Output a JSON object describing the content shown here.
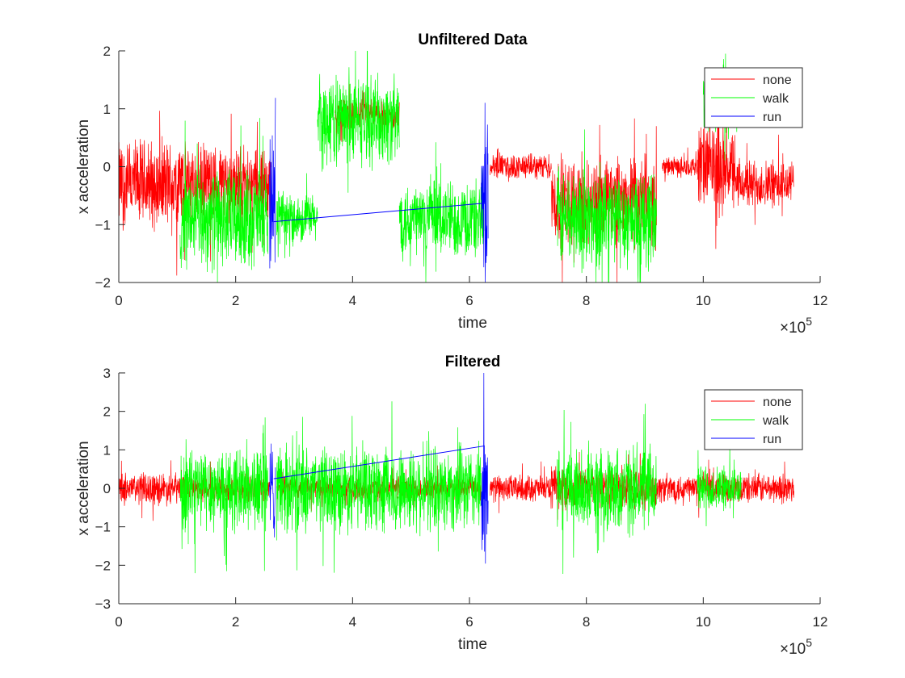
{
  "chart_data": [
    {
      "type": "line",
      "title": "Unfiltered Data",
      "xlabel": "time",
      "ylabel": "x acceleration",
      "x_exponent_label": "×10",
      "x_exponent": "5",
      "xlim": [
        0,
        12
      ],
      "ylim": [
        -2,
        2
      ],
      "xticks": [
        "0",
        "2",
        "4",
        "6",
        "8",
        "10",
        "12"
      ],
      "yticks": [
        "-2",
        "-1",
        "0",
        "1",
        "2"
      ],
      "legend_position": "top-right",
      "series": [
        {
          "name": "none",
          "color": "#ff0000",
          "segments": [
            {
              "x0": 0.0,
              "x1": 1.1,
              "center": -0.3,
              "amp": 0.9
            },
            {
              "x0": 1.1,
              "x1": 2.6,
              "center": -0.3,
              "amp": 0.8
            },
            {
              "x0": 3.7,
              "x1": 4.8,
              "center": 0.9,
              "amp": 0.3
            },
            {
              "x0": 6.35,
              "x1": 7.4,
              "center": 0.0,
              "amp": 0.25
            },
            {
              "x0": 7.4,
              "x1": 9.2,
              "center": -0.6,
              "amp": 0.9
            },
            {
              "x0": 9.3,
              "x1": 9.9,
              "center": 0.0,
              "amp": 0.2
            },
            {
              "x0": 9.9,
              "x1": 10.5,
              "center": 0.0,
              "amp": 0.9
            },
            {
              "x0": 10.5,
              "x1": 11.55,
              "center": -0.3,
              "amp": 0.5
            }
          ]
        },
        {
          "name": "walk",
          "color": "#00ff00",
          "segments": [
            {
              "x0": 1.05,
              "x1": 2.55,
              "center": -0.9,
              "amp": 1.0
            },
            {
              "x0": 2.7,
              "x1": 3.4,
              "center": -0.9,
              "amp": 0.5
            },
            {
              "x0": 3.4,
              "x1": 4.8,
              "center": 0.8,
              "amp": 0.9
            },
            {
              "x0": 4.8,
              "x1": 6.25,
              "center": -0.9,
              "amp": 0.8
            },
            {
              "x0": 7.5,
              "x1": 9.2,
              "center": -0.9,
              "amp": 1.0
            },
            {
              "x0": 10.0,
              "x1": 10.6,
              "center": 1.1,
              "amp": 0.6
            }
          ]
        },
        {
          "name": "run",
          "color": "#0000ff",
          "segments": [
            {
              "x0": 2.58,
              "x1": 2.68,
              "center": -0.4,
              "amp": 1.5
            },
            {
              "x0": 6.2,
              "x1": 6.32,
              "center": -0.5,
              "amp": 1.4
            }
          ],
          "connector": [
            [
              2.65,
              -0.95
            ],
            [
              6.25,
              -0.63
            ]
          ]
        }
      ]
    },
    {
      "type": "line",
      "title": "Filtered",
      "xlabel": "time",
      "ylabel": "x acceleration",
      "x_exponent_label": "×10",
      "x_exponent": "5",
      "xlim": [
        0,
        12
      ],
      "ylim": [
        -3,
        3
      ],
      "xticks": [
        "0",
        "2",
        "4",
        "6",
        "8",
        "10",
        "12"
      ],
      "yticks": [
        "-3",
        "-2",
        "-1",
        "0",
        "1",
        "2",
        "3"
      ],
      "legend_position": "top-right",
      "series": [
        {
          "name": "none",
          "color": "#ff0000",
          "segments": [
            {
              "x0": 0.0,
              "x1": 1.1,
              "center": 0.0,
              "amp": 0.5
            },
            {
              "x0": 1.1,
              "x1": 2.6,
              "center": 0.0,
              "amp": 0.4
            },
            {
              "x0": 2.7,
              "x1": 6.2,
              "center": 0.0,
              "amp": 0.35
            },
            {
              "x0": 6.35,
              "x1": 7.4,
              "center": 0.0,
              "amp": 0.4
            },
            {
              "x0": 7.4,
              "x1": 9.2,
              "center": 0.0,
              "amp": 0.6
            },
            {
              "x0": 9.2,
              "x1": 11.55,
              "center": 0.0,
              "amp": 0.45
            }
          ]
        },
        {
          "name": "walk",
          "color": "#00ff00",
          "segments": [
            {
              "x0": 1.05,
              "x1": 2.55,
              "center": 0.0,
              "amp": 1.3
            },
            {
              "x0": 2.7,
              "x1": 6.2,
              "center": 0.0,
              "amp": 1.3
            },
            {
              "x0": 7.5,
              "x1": 9.2,
              "center": 0.0,
              "amp": 1.3
            },
            {
              "x0": 9.9,
              "x1": 10.65,
              "center": 0.0,
              "amp": 0.7
            }
          ]
        },
        {
          "name": "run",
          "color": "#0000ff",
          "segments": [
            {
              "x0": 2.58,
              "x1": 2.68,
              "center": 0.0,
              "amp": 1.5
            },
            {
              "x0": 6.2,
              "x1": 6.32,
              "center": -0.2,
              "amp": 2.0
            }
          ],
          "connector": [
            [
              2.65,
              0.25
            ],
            [
              6.25,
              1.1
            ]
          ]
        }
      ]
    }
  ]
}
